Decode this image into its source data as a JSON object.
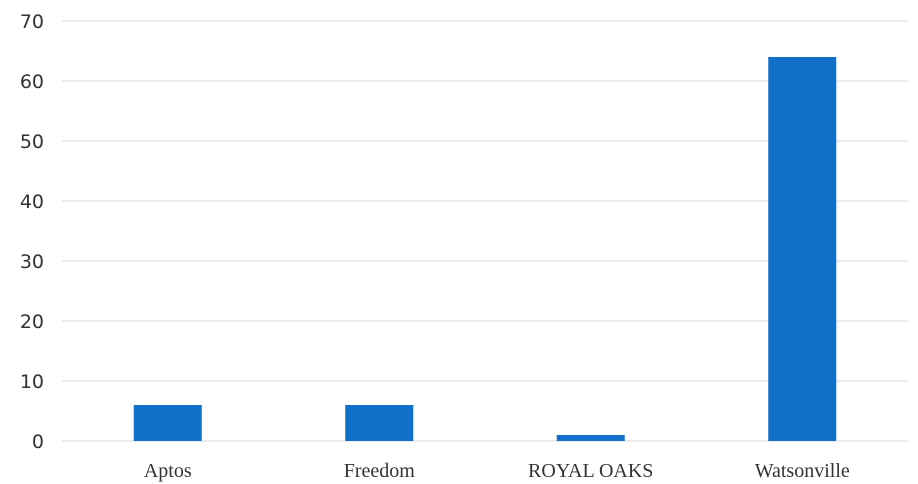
{
  "chart_data": {
    "type": "bar",
    "categories": [
      "Aptos",
      "Freedom",
      "ROYAL OAKS",
      "Watsonville"
    ],
    "values": [
      6,
      6,
      1,
      64
    ],
    "title": "",
    "xlabel": "",
    "ylabel": "",
    "ylim": [
      0,
      70
    ],
    "yticks": [
      "0",
      "10",
      "20",
      "30",
      "40",
      "50",
      "60",
      "70"
    ],
    "grid": true,
    "legend": "none",
    "bar_color": "#1170C9",
    "grid_color": "#D9D9D9"
  }
}
